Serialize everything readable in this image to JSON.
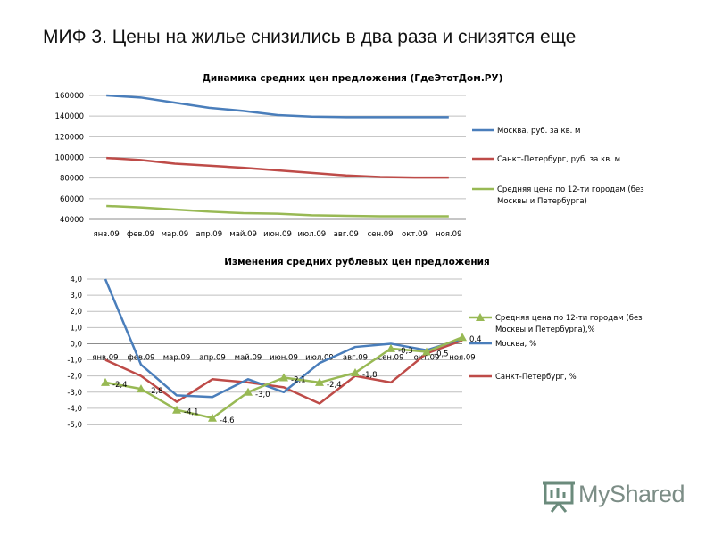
{
  "slide": {
    "title": "МИФ 3. Цены на жилье снизились в два раза и снизятся еще",
    "logo_text": "MyShared"
  },
  "chart_data": [
    {
      "type": "line",
      "title": "Динамика средних цен предложения (ГдеЭтотДом.РУ)",
      "categories": [
        "янв.09",
        "фев.09",
        "мар.09",
        "апр.09",
        "май.09",
        "июн.09",
        "июл.09",
        "авг.09",
        "сен.09",
        "окт.09",
        "ноя.09"
      ],
      "ylim": [
        40000,
        160000
      ],
      "yticks": [
        "40000",
        "60000",
        "80000",
        "100000",
        "120000",
        "140000",
        "160000"
      ],
      "grid": true,
      "legend_position": "right",
      "series": [
        {
          "name": "Москва, руб. за кв. м",
          "color": "#4a7ebb",
          "values": [
            160000,
            158000,
            153000,
            148000,
            145000,
            141000,
            139500,
            139000,
            139000,
            139000,
            139000
          ]
        },
        {
          "name": "Санкт-Петербург, руб. за кв. м",
          "color": "#be4b48",
          "values": [
            99500,
            97500,
            94000,
            92000,
            90000,
            87500,
            85000,
            82500,
            81000,
            80500,
            80500
          ]
        },
        {
          "name": "Средняя цена по 12-ти городам (без Москвы и Петербурга)",
          "color": "#98b954",
          "values": [
            53000,
            51500,
            49500,
            47500,
            46000,
            45500,
            44000,
            43500,
            43000,
            43000,
            43000
          ]
        }
      ]
    },
    {
      "type": "line",
      "title": "Изменения средних рублевых цен предложения",
      "categories": [
        "янв.09",
        "фев.09",
        "мар.09",
        "апр.09",
        "май.09",
        "июн.09",
        "июл.09",
        "авг.09",
        "сен.09",
        "окт.09",
        "ноя.09"
      ],
      "ylim": [
        -5,
        4
      ],
      "yticks": [
        "-5,0",
        "-4,0",
        "-3,0",
        "-2,0",
        "-1,0",
        "0,0",
        "1,0",
        "2,0",
        "3,0",
        "4,0"
      ],
      "grid": true,
      "legend_position": "right",
      "series": [
        {
          "name": "Средняя цена по 12-ти городам (без Москвы и Петербурга),%",
          "color": "#98b954",
          "marker": "triangle",
          "values": [
            -2.4,
            -2.8,
            -4.1,
            -4.6,
            -3.0,
            -2.1,
            -2.4,
            -1.8,
            -0.3,
            -0.5,
            0.4
          ],
          "labels": [
            "-2,4",
            "-2,8",
            "-4,1",
            "-4,6",
            "-3,0",
            "-2,1",
            "-2,4",
            "-1,8",
            "-0,3",
            "-0,5",
            "0,4"
          ]
        },
        {
          "name": "Москва, %",
          "color": "#4a7ebb",
          "values": [
            4.0,
            -1.3,
            -3.2,
            -3.3,
            -2.2,
            -3.0,
            -1.2,
            -0.2,
            0.0,
            -0.4,
            0.3
          ]
        },
        {
          "name": "Санкт-Петербург, %",
          "color": "#be4b48",
          "values": [
            -1.0,
            -2.0,
            -3.6,
            -2.2,
            -2.4,
            -2.7,
            -3.7,
            -2.0,
            -2.4,
            -0.6,
            0.2
          ]
        }
      ]
    }
  ]
}
